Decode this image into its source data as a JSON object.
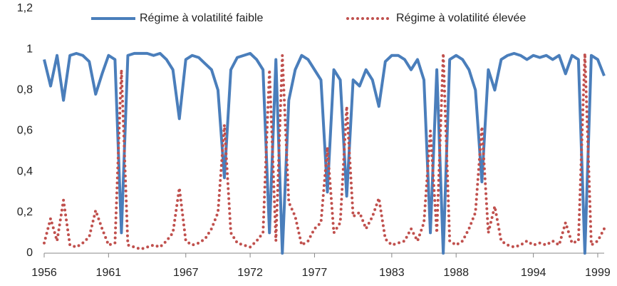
{
  "chart_data": {
    "type": "line",
    "x": [
      1956,
      1956.5,
      1957,
      1957.5,
      1958,
      1958.5,
      1959,
      1959.5,
      1960,
      1960.5,
      1961,
      1961.5,
      1962,
      1962.5,
      1963,
      1963.5,
      1964,
      1964.5,
      1965,
      1965.5,
      1966,
      1966.5,
      1967,
      1967.5,
      1968,
      1968.5,
      1969,
      1969.5,
      1970,
      1970.5,
      1971,
      1971.5,
      1972,
      1972.5,
      1973,
      1973.5,
      1974,
      1974.5,
      1975,
      1975.5,
      1976,
      1976.5,
      1977,
      1977.5,
      1978,
      1978.5,
      1979,
      1979.5,
      1980,
      1980.5,
      1981,
      1981.5,
      1982,
      1982.5,
      1983,
      1983.5,
      1984,
      1984.5,
      1985,
      1985.5,
      1986,
      1986.5,
      1987,
      1987.5,
      1988,
      1988.5,
      1989,
      1989.5,
      1990,
      1990.5,
      1991,
      1991.5,
      1992,
      1992.5,
      1993,
      1993.5,
      1994,
      1994.5,
      1995,
      1995.5,
      1996,
      1996.5,
      1997,
      1997.5,
      1998,
      1998.5,
      1999,
      1999.5
    ],
    "series": [
      {
        "name": "Régime à volatilité faible",
        "color": "#4a7ebb",
        "style": "solid",
        "values": [
          0.95,
          0.82,
          0.97,
          0.75,
          0.97,
          0.98,
          0.97,
          0.94,
          0.78,
          0.88,
          0.97,
          0.95,
          0.1,
          0.97,
          0.98,
          0.98,
          0.98,
          0.97,
          0.98,
          0.95,
          0.9,
          0.66,
          0.95,
          0.97,
          0.96,
          0.93,
          0.9,
          0.8,
          0.37,
          0.9,
          0.96,
          0.97,
          0.98,
          0.95,
          0.9,
          0.1,
          0.95,
          0,
          0.75,
          0.9,
          0.97,
          0.95,
          0.9,
          0.85,
          0.3,
          0.9,
          0.85,
          0.28,
          0.85,
          0.82,
          0.9,
          0.85,
          0.72,
          0.94,
          0.97,
          0.97,
          0.95,
          0.9,
          0.95,
          0.85,
          0.1,
          0.9,
          0,
          0.95,
          0.97,
          0.95,
          0.9,
          0.8,
          0.35,
          0.9,
          0.8,
          0.95,
          0.97,
          0.98,
          0.97,
          0.95,
          0.97,
          0.96,
          0.97,
          0.95,
          0.97,
          0.88,
          0.97,
          0.95,
          0,
          0.97,
          0.95,
          0.87
        ]
      },
      {
        "name": "Régime à volatilité élevée",
        "color": "#c0504d",
        "style": "dotted",
        "values": [
          0.05,
          0.17,
          0.06,
          0.26,
          0.04,
          0.03,
          0.05,
          0.08,
          0.21,
          0.12,
          0.04,
          0.05,
          0.9,
          0.04,
          0.03,
          0.02,
          0.03,
          0.04,
          0.03,
          0.06,
          0.1,
          0.32,
          0.06,
          0.04,
          0.05,
          0.07,
          0.12,
          0.2,
          0.63,
          0.1,
          0.05,
          0.04,
          0.03,
          0.06,
          0.1,
          0.9,
          0.06,
          0.97,
          0.25,
          0.18,
          0.04,
          0.06,
          0.12,
          0.15,
          0.52,
          0.1,
          0.15,
          0.72,
          0.18,
          0.2,
          0.12,
          0.18,
          0.27,
          0.07,
          0.04,
          0.05,
          0.06,
          0.12,
          0.06,
          0.15,
          0.6,
          0.1,
          0.98,
          0.06,
          0.04,
          0.06,
          0.12,
          0.2,
          0.62,
          0.1,
          0.23,
          0.06,
          0.04,
          0.03,
          0.04,
          0.06,
          0.04,
          0.05,
          0.04,
          0.06,
          0.04,
          0.15,
          0.05,
          0.06,
          0.98,
          0.04,
          0.06,
          0.12
        ]
      }
    ],
    "xlim": [
      1956,
      1999.5
    ],
    "xticks": [
      1956,
      1961,
      1967,
      1972,
      1977,
      1983,
      1988,
      1994,
      1999
    ],
    "ylim": [
      0,
      1.2
    ],
    "yticks": [
      0,
      {
        "value": 0.2,
        "label": "0,2"
      },
      {
        "value": 0.4,
        "label": "0,4"
      },
      {
        "value": 0.6,
        "label": "0,6"
      },
      {
        "value": 0.8,
        "label": "0,8"
      },
      1,
      {
        "value": 1.2,
        "label": "1,2"
      }
    ],
    "legend": "top",
    "grid": false
  }
}
